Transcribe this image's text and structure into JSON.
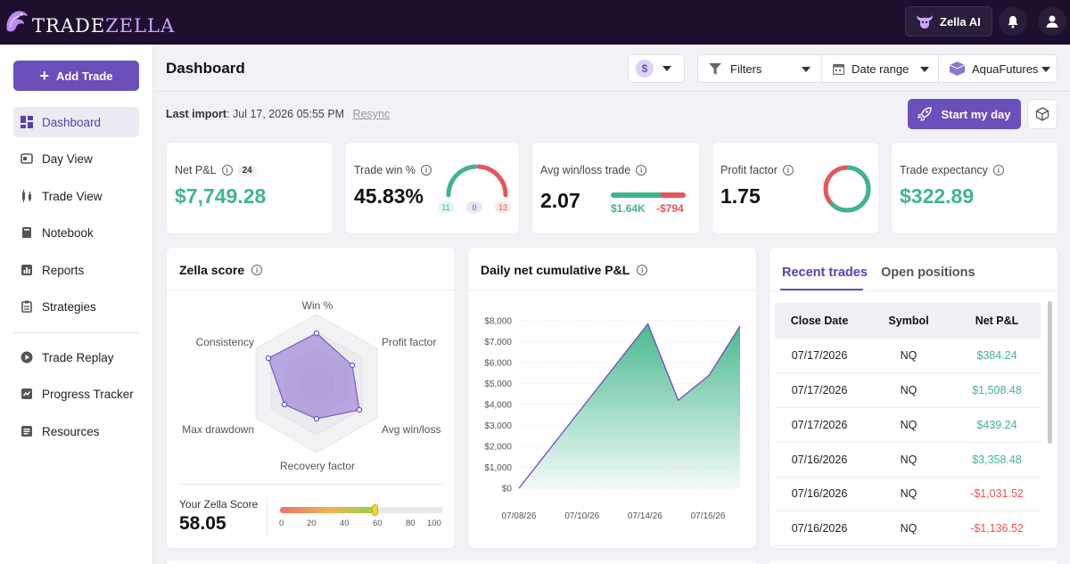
{
  "brand": {
    "name_a": "TRADE",
    "name_b": "ZELLA"
  },
  "topbar": {
    "ai_label": "Zella AI"
  },
  "sidebar": {
    "add_trade": "Add Trade",
    "items": [
      {
        "label": "Dashboard",
        "icon": "dashboard-icon"
      },
      {
        "label": "Day View",
        "icon": "day-view-icon"
      },
      {
        "label": "Trade View",
        "icon": "trade-view-icon"
      },
      {
        "label": "Notebook",
        "icon": "notebook-icon"
      },
      {
        "label": "Reports",
        "icon": "reports-icon"
      },
      {
        "label": "Strategies",
        "icon": "strategies-icon"
      },
      {
        "label": "Trade Replay",
        "icon": "play-icon"
      },
      {
        "label": "Progress Tracker",
        "icon": "progress-icon"
      },
      {
        "label": "Resources",
        "icon": "resources-icon"
      }
    ]
  },
  "header": {
    "title": "Dashboard",
    "filters": "Filters",
    "date_range": "Date range",
    "account": "AquaFutures",
    "last_import_label": "Last import",
    "last_import_value": ": Jul 17, 2026 05:55 PM",
    "resync": "Resync",
    "start_day": "Start my day"
  },
  "stats": {
    "net_pnl": {
      "label": "Net P&L",
      "badge": "24",
      "value": "$7,749.28"
    },
    "trade_win": {
      "label": "Trade win %",
      "value": "45.83%",
      "wins": "11",
      "breakeven": "0",
      "losses": "13"
    },
    "avg_win_loss": {
      "label": "Avg win/loss trade",
      "value": "2.07",
      "avg_win": "$1.64K",
      "avg_loss": "-$794"
    },
    "profit_factor": {
      "label": "Profit factor",
      "value": "1.75"
    },
    "expectancy": {
      "label": "Trade expectancy",
      "value": "$322.89"
    }
  },
  "zella": {
    "title": "Zella score",
    "axes": [
      "Win %",
      "Profit factor",
      "Avg win/loss",
      "Recovery factor",
      "Max drawdown",
      "Consistency"
    ],
    "score_label": "Your Zella Score",
    "score": "58.05",
    "score_value": 58.05,
    "scale": [
      "0",
      "20",
      "40",
      "60",
      "80",
      "100"
    ]
  },
  "chart_data": {
    "type": "area",
    "title": "Daily net cumulative P&L",
    "x": [
      "07/08/26",
      "07/14/26",
      "07/15/26",
      "07/16/26",
      "07/17/26"
    ],
    "xticks": [
      "07/08/26",
      "07/10/26",
      "07/14/26",
      "07/16/26"
    ],
    "series": [
      {
        "values": [
          0,
          7850,
          4200,
          5400,
          7750
        ]
      }
    ],
    "yticks": [
      "$8,000",
      "$7,000",
      "$6,000",
      "$5,000",
      "$4,000",
      "$3,000",
      "$2,000",
      "$1,000",
      "$0"
    ],
    "ylim": [
      0,
      8000
    ],
    "grid": true,
    "colors": {
      "fill": "#3fb58b",
      "line": "#6b4fbb"
    }
  },
  "trades": {
    "tab_recent": "Recent trades",
    "tab_open": "Open positions",
    "headers": [
      "Close Date",
      "Symbol",
      "Net P&L"
    ],
    "rows": [
      {
        "date": "07/17/2026",
        "symbol": "NQ",
        "pnl": "$384.24",
        "positive": true
      },
      {
        "date": "07/17/2026",
        "symbol": "NQ",
        "pnl": "$1,508.48",
        "positive": true
      },
      {
        "date": "07/17/2026",
        "symbol": "NQ",
        "pnl": "$439.24",
        "positive": true
      },
      {
        "date": "07/16/2026",
        "symbol": "NQ",
        "pnl": "$3,358.48",
        "positive": true
      },
      {
        "date": "07/16/2026",
        "symbol": "NQ",
        "pnl": "-$1,031.52",
        "positive": false
      },
      {
        "date": "07/16/2026",
        "symbol": "NQ",
        "pnl": "-$1,136.52",
        "positive": false
      }
    ]
  },
  "colors": {
    "accent": "#6b4fbb",
    "positive": "#3fb58b",
    "negative": "#e6555a",
    "topbar": "#1e0f2e"
  }
}
